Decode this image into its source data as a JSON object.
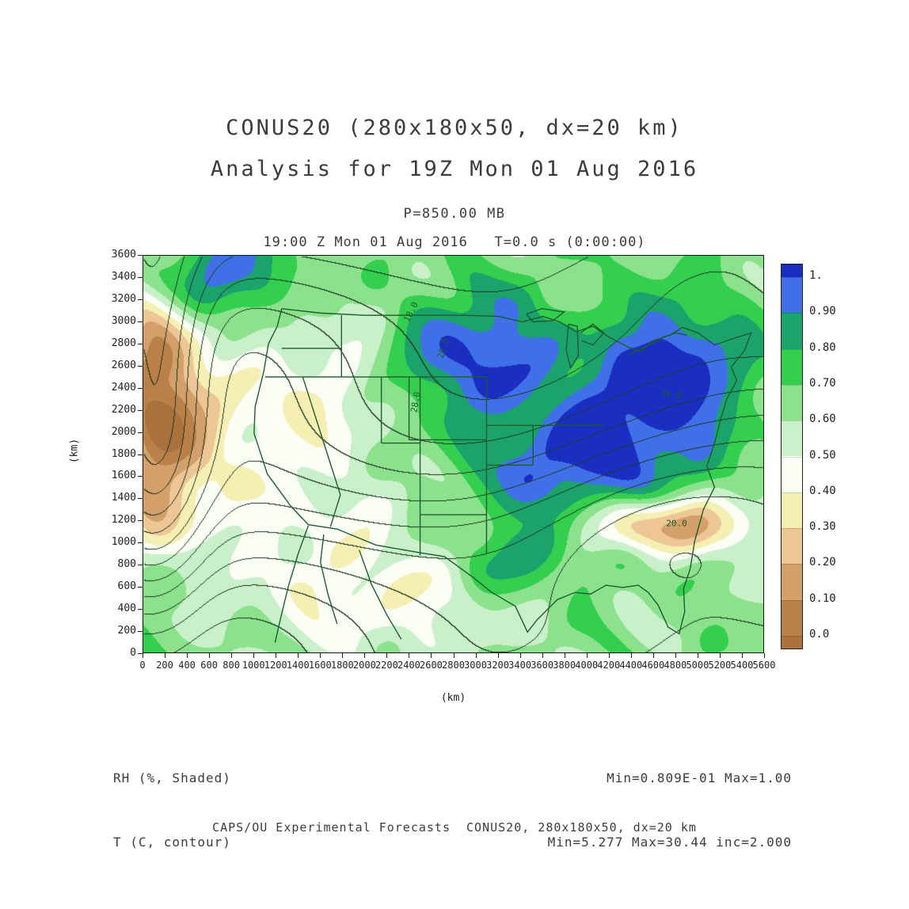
{
  "header": {
    "title": "CONUS20 (280x180x50, dx=20 km)",
    "subtitle": "Analysis for 19Z Mon 01 Aug 2016",
    "level": "P=850.00 MB",
    "time_line": "19:00 Z Mon 01 Aug 2016   T=0.0 s (0:00:00)"
  },
  "chart_data": {
    "type": "heatmap",
    "title": "CONUS20 (280x180x50, dx=20 km)",
    "subtitle": "Analysis for 19Z Mon 01 Aug 2016",
    "pressure_level": "P=850.00 MB",
    "valid_time": "19:00 Z Mon 01 Aug 2016   T=0.0 s (0:00:00)",
    "xlabel": "(km)",
    "ylabel": "(km)",
    "xlim": [
      0,
      5600
    ],
    "ylim": [
      0,
      3600
    ],
    "x_ticks": [
      "0",
      "200",
      "400",
      "600",
      "800",
      "1000",
      "1200",
      "1400",
      "1600",
      "1800",
      "2000",
      "2200",
      "2400",
      "2600",
      "2800",
      "3000",
      "3200",
      "3400",
      "3600",
      "3800",
      "4000",
      "4200",
      "4400",
      "4600",
      "4800",
      "5000",
      "5200",
      "5400",
      "5600"
    ],
    "y_ticks": [
      "3600",
      "3400",
      "3200",
      "3000",
      "2800",
      "2600",
      "2400",
      "2200",
      "2000",
      "1800",
      "1600",
      "1400",
      "1200",
      "1000",
      "800",
      "600",
      "400",
      "200",
      "0"
    ],
    "shaded_field": {
      "name": "RH",
      "units": "%",
      "min": 0.0809,
      "max": 1.0
    },
    "contour_field": {
      "name": "T",
      "units": "C",
      "min": 5.277,
      "max": 30.44,
      "interval": 2.0
    },
    "colorbar": {
      "tick_labels": [
        "0.0",
        "0.10",
        "0.20",
        "0.30",
        "0.40",
        "0.50",
        "0.60",
        "0.70",
        "0.80",
        "0.90",
        "1."
      ],
      "colors": [
        "#a9713c",
        "#b98049",
        "#d3a06b",
        "#ecc795",
        "#f6efb4",
        "#fbfef4",
        "#c9f0c9",
        "#8ce28c",
        "#35cf50",
        "#1ba36b",
        "#4070e8",
        "#1b2ec2"
      ]
    },
    "contour_labels": [
      {
        "text": "18.0",
        "x": 2410,
        "y": 3095,
        "rot": -62
      },
      {
        "text": "20.0",
        "x": 2700,
        "y": 2770,
        "rot": -72
      },
      {
        "text": "28.0",
        "x": 2450,
        "y": 2280,
        "rot": -80
      },
      {
        "text": "16.0",
        "x": 4760,
        "y": 2350,
        "rot": 8
      },
      {
        "text": "20.0",
        "x": 4810,
        "y": 1175,
        "rot": 0
      }
    ],
    "approx": {
      "rh_base": 0.64,
      "rh_blobs": [
        {
          "x": 120,
          "y": 2150,
          "sx": 300,
          "sy": 950,
          "a": -0.62
        },
        {
          "x": 1000,
          "y": 2000,
          "sx": 650,
          "sy": 800,
          "a": -0.2
        },
        {
          "x": 1800,
          "y": 2350,
          "sx": 480,
          "sy": 420,
          "a": -0.1
        },
        {
          "x": 2200,
          "y": 600,
          "sx": 900,
          "sy": 480,
          "a": -0.22
        },
        {
          "x": 600,
          "y": 3420,
          "sx": 460,
          "sy": 330,
          "a": 0.4
        },
        {
          "x": 3050,
          "y": 2820,
          "sx": 460,
          "sy": 360,
          "a": 0.34
        },
        {
          "x": 4780,
          "y": 2550,
          "sx": 470,
          "sy": 470,
          "a": 0.42
        },
        {
          "x": 3950,
          "y": 1750,
          "sx": 650,
          "sy": 520,
          "a": 0.4
        },
        {
          "x": 4700,
          "y": 1150,
          "sx": 600,
          "sy": 190,
          "a": -0.55
        },
        {
          "x": 3300,
          "y": 850,
          "sx": 420,
          "sy": 300,
          "a": 0.22
        },
        {
          "x": 2650,
          "y": 2400,
          "sx": 400,
          "sy": 280,
          "a": 0.12
        },
        {
          "x": 130,
          "y": 600,
          "sx": 350,
          "sy": 500,
          "a": 0.15
        }
      ],
      "t": {
        "base": 26.5,
        "lapse": 0.00485,
        "cold": {
          "x": 100,
          "y": 2200,
          "sx": 320,
          "sy": 1200,
          "a": -12
        },
        "warm": {
          "x": 4500,
          "y": 1100,
          "sx": 800,
          "sy": 500,
          "a": 1.8
        }
      }
    },
    "geo": {
      "coast": [
        [
          1250,
          3120
        ],
        [
          1210,
          2960
        ],
        [
          1130,
          2800
        ],
        [
          1090,
          2560
        ],
        [
          1010,
          2230
        ],
        [
          1000,
          1990
        ],
        [
          1120,
          1620
        ],
        [
          1330,
          1330
        ],
        [
          1490,
          1160
        ],
        [
          1750,
          1120
        ],
        [
          2100,
          975
        ],
        [
          2500,
          905
        ],
        [
          2720,
          870
        ],
        [
          2980,
          680
        ],
        [
          3140,
          550
        ],
        [
          3360,
          420
        ],
        [
          3470,
          185
        ],
        [
          3560,
          300
        ],
        [
          3620,
          360
        ],
        [
          3740,
          480
        ],
        [
          3900,
          545
        ],
        [
          4040,
          530
        ],
        [
          4180,
          610
        ],
        [
          4330,
          590
        ],
        [
          4470,
          610
        ],
        [
          4560,
          545
        ],
        [
          4650,
          430
        ],
        [
          4740,
          230
        ],
        [
          4840,
          170
        ],
        [
          4890,
          370
        ],
        [
          4880,
          580
        ],
        [
          4940,
          760
        ],
        [
          4980,
          1010
        ],
        [
          5060,
          1300
        ],
        [
          5160,
          1500
        ],
        [
          5090,
          1690
        ],
        [
          5160,
          1900
        ],
        [
          5210,
          2100
        ],
        [
          5270,
          2300
        ],
        [
          5360,
          2470
        ],
        [
          5310,
          2590
        ],
        [
          5430,
          2740
        ],
        [
          5490,
          2900
        ],
        [
          5330,
          2850
        ],
        [
          5160,
          2790
        ],
        [
          5010,
          2900
        ],
        [
          4870,
          2950
        ],
        [
          4760,
          2880
        ],
        [
          4610,
          2830
        ],
        [
          4490,
          2730
        ],
        [
          4380,
          2770
        ],
        [
          4210,
          2860
        ],
        [
          4060,
          2960
        ],
        [
          3910,
          2910
        ],
        [
          3760,
          3000
        ],
        [
          3610,
          3050
        ],
        [
          3420,
          3000
        ],
        [
          3210,
          3050
        ],
        [
          2900,
          3060
        ],
        [
          2500,
          3060
        ],
        [
          2000,
          3060
        ],
        [
          1600,
          3080
        ],
        [
          1250,
          3120
        ]
      ],
      "state_lines": [
        [
          [
            1250,
            2760
          ],
          [
            1790,
            2760
          ]
        ],
        [
          [
            1100,
            2500
          ],
          [
            1790,
            2500
          ]
        ],
        [
          [
            1440,
            2500
          ],
          [
            1780,
            1430
          ]
        ],
        [
          [
            1780,
            1430
          ],
          [
            1690,
            1140
          ]
        ],
        [
          [
            1790,
            3060
          ],
          [
            1790,
            2500
          ]
        ],
        [
          [
            1790,
            2500
          ],
          [
            3100,
            2500
          ]
        ],
        [
          [
            2150,
            2500
          ],
          [
            2150,
            1900
          ]
        ],
        [
          [
            2400,
            2500
          ],
          [
            2400,
            1930
          ]
        ],
        [
          [
            2400,
            1930
          ],
          [
            3100,
            1930
          ]
        ],
        [
          [
            3100,
            2500
          ],
          [
            3100,
            1250
          ]
        ],
        [
          [
            2150,
            1900
          ],
          [
            2500,
            1900
          ]
        ],
        [
          [
            2500,
            2500
          ],
          [
            2500,
            1900
          ]
        ],
        [
          [
            2500,
            1900
          ],
          [
            2500,
            880
          ]
        ],
        [
          [
            2500,
            1250
          ],
          [
            3100,
            1250
          ]
        ],
        [
          [
            3100,
            1250
          ],
          [
            3100,
            900
          ]
        ],
        [
          [
            3100,
            1700
          ],
          [
            3520,
            1700
          ]
        ],
        [
          [
            3520,
            1700
          ],
          [
            3520,
            2060
          ]
        ],
        [
          [
            3100,
            2060
          ],
          [
            4150,
            2060
          ]
        ]
      ],
      "other_lines": [
        [
          [
            1490,
            1150
          ],
          [
            1400,
            900
          ],
          [
            1310,
            600
          ],
          [
            1240,
            310
          ],
          [
            1190,
            90
          ]
        ],
        [
          [
            1630,
            1070
          ],
          [
            1600,
            820
          ],
          [
            1670,
            520
          ],
          [
            1750,
            260
          ]
        ],
        [
          [
            1950,
            930
          ],
          [
            2060,
            620
          ],
          [
            2200,
            340
          ],
          [
            2330,
            120
          ]
        ],
        [
          [
            3840,
            2980
          ],
          [
            3820,
            2740
          ],
          [
            3860,
            2580
          ],
          [
            3930,
            2700
          ],
          [
            3920,
            2960
          ],
          [
            3840,
            2980
          ]
        ],
        [
          [
            3460,
            3070
          ],
          [
            3600,
            3120
          ],
          [
            3800,
            3090
          ],
          [
            3700,
            3010
          ],
          [
            3520,
            3000
          ],
          [
            3460,
            3070
          ]
        ],
        [
          [
            3950,
            2900
          ],
          [
            4060,
            2980
          ],
          [
            4160,
            2900
          ],
          [
            4060,
            2790
          ],
          [
            3960,
            2830
          ]
        ],
        [
          [
            4380,
            2700
          ],
          [
            4520,
            2770
          ],
          [
            4660,
            2830
          ]
        ],
        [
          [
            4690,
            2860
          ],
          [
            4810,
            2900
          ],
          [
            4910,
            2880
          ]
        ]
      ]
    }
  },
  "annotations": {
    "shaded_label": "RH (%, Shaded)",
    "contour_label": "T (C, contour)",
    "shaded_minmax": "Min=0.809E-01 Max=1.00",
    "contour_minmax": "Min=5.277 Max=30.44 inc=2.000"
  },
  "footer": {
    "text": "CAPS/OU Experimental Forecasts  CONUS20, 280x180x50, dx=20 km"
  }
}
